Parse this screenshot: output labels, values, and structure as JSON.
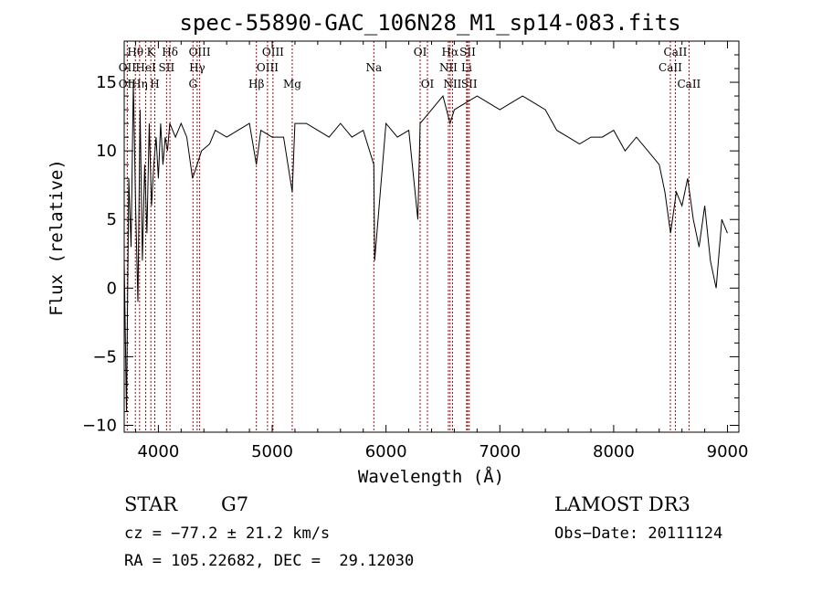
{
  "chart_data": {
    "type": "line",
    "title": "spec-55890-GAC_106N28_M1_sp14-083.fits",
    "xlabel": "Wavelength (Å)",
    "ylabel": "Flux (relative)",
    "xlim": [
      3700,
      9100
    ],
    "ylim": [
      -10.5,
      18
    ],
    "x_ticks": [
      4000,
      5000,
      6000,
      7000,
      8000,
      9000
    ],
    "y_ticks": [
      -10,
      -5,
      0,
      5,
      10,
      15
    ],
    "x_tick_labels": [
      "4000",
      "5000",
      "6000",
      "7000",
      "8000",
      "9000"
    ],
    "y_tick_labels": [
      "−10",
      "−5",
      "0",
      "5",
      "10",
      "15"
    ],
    "series": [
      {
        "name": "spectrum",
        "x": [
          3700,
          3720,
          3740,
          3760,
          3780,
          3800,
          3820,
          3840,
          3860,
          3880,
          3900,
          3920,
          3940,
          3960,
          3980,
          4000,
          4020,
          4040,
          4060,
          4080,
          4100,
          4150,
          4200,
          4250,
          4300,
          4340,
          4380,
          4450,
          4500,
          4600,
          4700,
          4800,
          4861,
          4900,
          5000,
          5100,
          5176,
          5200,
          5300,
          5400,
          5500,
          5600,
          5700,
          5800,
          5893,
          5900,
          5950,
          6000,
          6100,
          6200,
          6280,
          6300,
          6400,
          6500,
          6563,
          6600,
          6700,
          6800,
          6900,
          7000,
          7100,
          7200,
          7300,
          7400,
          7500,
          7600,
          7700,
          7800,
          7900,
          8000,
          8100,
          8200,
          8300,
          8400,
          8450,
          8500,
          8550,
          8600,
          8650,
          8700,
          8750,
          8800,
          8850,
          8900,
          8950,
          9000
        ],
        "y": [
          2,
          -9,
          8,
          3,
          15,
          6,
          -1,
          13,
          2,
          9,
          4,
          12,
          6,
          9,
          11,
          8,
          12,
          9,
          11,
          10,
          12,
          11,
          12,
          11,
          8,
          9,
          10,
          10.5,
          11.5,
          11,
          11.5,
          12,
          9,
          11.5,
          11,
          11,
          7,
          12,
          12,
          11.5,
          11,
          12,
          11,
          11.5,
          9,
          2,
          7,
          12,
          11,
          11.5,
          5,
          12,
          13,
          14,
          12,
          13,
          13.5,
          14,
          13.5,
          13,
          13.5,
          14,
          13.5,
          13,
          11.5,
          11,
          10.5,
          11,
          11,
          11.5,
          10,
          11,
          10,
          9,
          7,
          4,
          7,
          6,
          8,
          5,
          3,
          6,
          2,
          0,
          5,
          4
        ]
      }
    ],
    "line_labels": [
      {
        "label": "Hθ",
        "wavelength": 3798,
        "row": 1
      },
      {
        "label": "OII",
        "wavelength": 3727,
        "row": 2
      },
      {
        "label": "OII",
        "wavelength": 3727,
        "row": 3
      },
      {
        "label": "K",
        "wavelength": 3934,
        "row": 1
      },
      {
        "label": "HeI",
        "wavelength": 3889,
        "row": 2
      },
      {
        "label": "Hη",
        "wavelength": 3835,
        "row": 3
      },
      {
        "label": "H",
        "wavelength": 3969,
        "row": 3
      },
      {
        "label": "Hδ",
        "wavelength": 4102,
        "row": 1
      },
      {
        "label": "SII",
        "wavelength": 4072,
        "row": 2
      },
      {
        "label": "OIII",
        "wavelength": 4363,
        "row": 1
      },
      {
        "label": "Hγ",
        "wavelength": 4341,
        "row": 2
      },
      {
        "label": "G",
        "wavelength": 4304,
        "row": 3
      },
      {
        "label": "Hβ",
        "wavelength": 4861,
        "row": 3
      },
      {
        "label": "OIII",
        "wavelength": 5007,
        "row": 1
      },
      {
        "label": "OIII",
        "wavelength": 4959,
        "row": 2
      },
      {
        "label": "Mg",
        "wavelength": 5176,
        "row": 3
      },
      {
        "label": "Na",
        "wavelength": 5893,
        "row": 2
      },
      {
        "label": "OI",
        "wavelength": 6300,
        "row": 1
      },
      {
        "label": "OI",
        "wavelength": 6364,
        "row": 3
      },
      {
        "label": "Hα",
        "wavelength": 6563,
        "row": 1
      },
      {
        "label": "NII",
        "wavelength": 6548,
        "row": 2
      },
      {
        "label": "NII",
        "wavelength": 6584,
        "row": 3
      },
      {
        "label": "SII",
        "wavelength": 6717,
        "row": 1
      },
      {
        "label": "Li",
        "wavelength": 6708,
        "row": 2
      },
      {
        "label": "SII",
        "wavelength": 6731,
        "row": 3
      },
      {
        "label": "CaII",
        "wavelength": 8542,
        "row": 1
      },
      {
        "label": "CaII",
        "wavelength": 8498,
        "row": 2
      },
      {
        "label": "CaII",
        "wavelength": 8662,
        "row": 3
      }
    ],
    "line_marker_wavelengths": [
      3727,
      3798,
      3835,
      3889,
      3934,
      3969,
      4072,
      4102,
      4304,
      4341,
      4363,
      4861,
      4959,
      5007,
      5176,
      5893,
      6300,
      6364,
      6548,
      6563,
      6584,
      6708,
      6717,
      6731,
      8498,
      8542,
      8662
    ],
    "colors": {
      "spectrum": "#000000",
      "line_markers": "#b00000",
      "axes": "#000000"
    }
  },
  "info": {
    "object_type": "STAR",
    "subclass": "G7",
    "survey": "LAMOST DR3",
    "cz": "cz = −77.2 ± 21.2 km/s",
    "obs_date": "Obs−Date: 20111124",
    "radec": "RA = 105.22682, DEC =  29.12030"
  }
}
